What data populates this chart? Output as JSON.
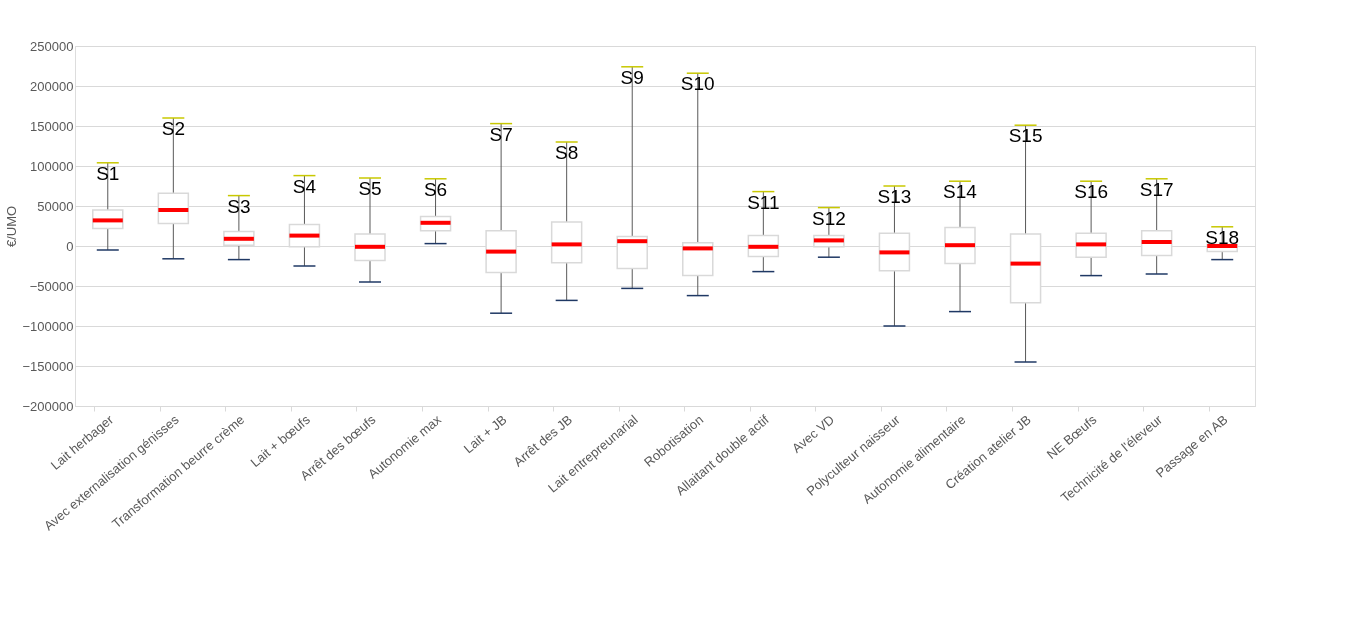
{
  "chart_data": {
    "type": "box",
    "ylabel": "€/UMO",
    "categories": [
      "Lait herbager",
      "Avec externalisation génisses",
      "Transformation beurre crème",
      "Lait + bœufs",
      "Arrêt des bœufs",
      "Autonomie max",
      "Lait + JB",
      "Arrêt des JB",
      "Lait entrepreunarial",
      "Robotisation",
      "Allaitant double actif",
      "Avec VD",
      "Polyculteur naisseur",
      "Autonomie alimentaire",
      "Création atelier JB",
      "NE Bœufs",
      "Technicité de l'éleveur",
      "Passage en AB"
    ],
    "series": [
      {
        "color": "#ffffff",
        "boxes": [
          {
            "low": -5000,
            "q1": 22000,
            "median": 32000,
            "q3": 45000,
            "high": 104000
          },
          {
            "low": -16000,
            "q1": 28000,
            "median": 45000,
            "q3": 66000,
            "high": 160000
          },
          {
            "low": -17000,
            "q1": 1000,
            "median": 9000,
            "q3": 18000,
            "high": 63000
          },
          {
            "low": -25000,
            "q1": -1000,
            "median": 13000,
            "q3": 27000,
            "high": 88000
          },
          {
            "low": -45000,
            "q1": -18000,
            "median": -1000,
            "q3": 15000,
            "high": 85000
          },
          {
            "low": 3000,
            "q1": 19000,
            "median": 29000,
            "q3": 37000,
            "high": 84000
          },
          {
            "low": -84000,
            "q1": -33000,
            "median": -7000,
            "q3": 19000,
            "high": 153000
          },
          {
            "low": -68000,
            "q1": -21000,
            "median": 2000,
            "q3": 30000,
            "high": 130000
          },
          {
            "low": -53000,
            "q1": -28000,
            "median": 6000,
            "q3": 12000,
            "high": 224000
          },
          {
            "low": -62000,
            "q1": -37000,
            "median": -3000,
            "q3": 4000,
            "high": 216000
          },
          {
            "low": -32000,
            "q1": -13000,
            "median": -1000,
            "q3": 13000,
            "high": 68000
          },
          {
            "low": -14000,
            "q1": -1000,
            "median": 7000,
            "q3": 13000,
            "high": 48000
          },
          {
            "low": -100000,
            "q1": -31000,
            "median": -8000,
            "q3": 16000,
            "high": 75000
          },
          {
            "low": -82000,
            "q1": -22000,
            "median": 1000,
            "q3": 23000,
            "high": 81000
          },
          {
            "low": -145000,
            "q1": -71000,
            "median": -22000,
            "q3": 15000,
            "high": 151000
          },
          {
            "low": -37000,
            "q1": -14000,
            "median": 2000,
            "q3": 16000,
            "high": 81000
          },
          {
            "low": -35000,
            "q1": -12000,
            "median": 5000,
            "q3": 19000,
            "high": 84000
          },
          {
            "low": -17000,
            "q1": -7000,
            "median": 0,
            "q3": 2000,
            "high": 24000
          }
        ]
      }
    ],
    "ylim": [
      -200000,
      250000
    ],
    "yticks": [
      -200000,
      -150000,
      -100000,
      -50000,
      0,
      50000,
      100000,
      150000,
      200000,
      250000
    ],
    "grid": "y",
    "annotations": [
      "S1",
      "S2",
      "S3",
      "S4",
      "S5",
      "S6",
      "S7",
      "S8",
      "S9",
      "S10",
      "S11",
      "S12",
      "S13",
      "S14",
      "S15",
      "S16",
      "S17",
      "S18"
    ]
  }
}
